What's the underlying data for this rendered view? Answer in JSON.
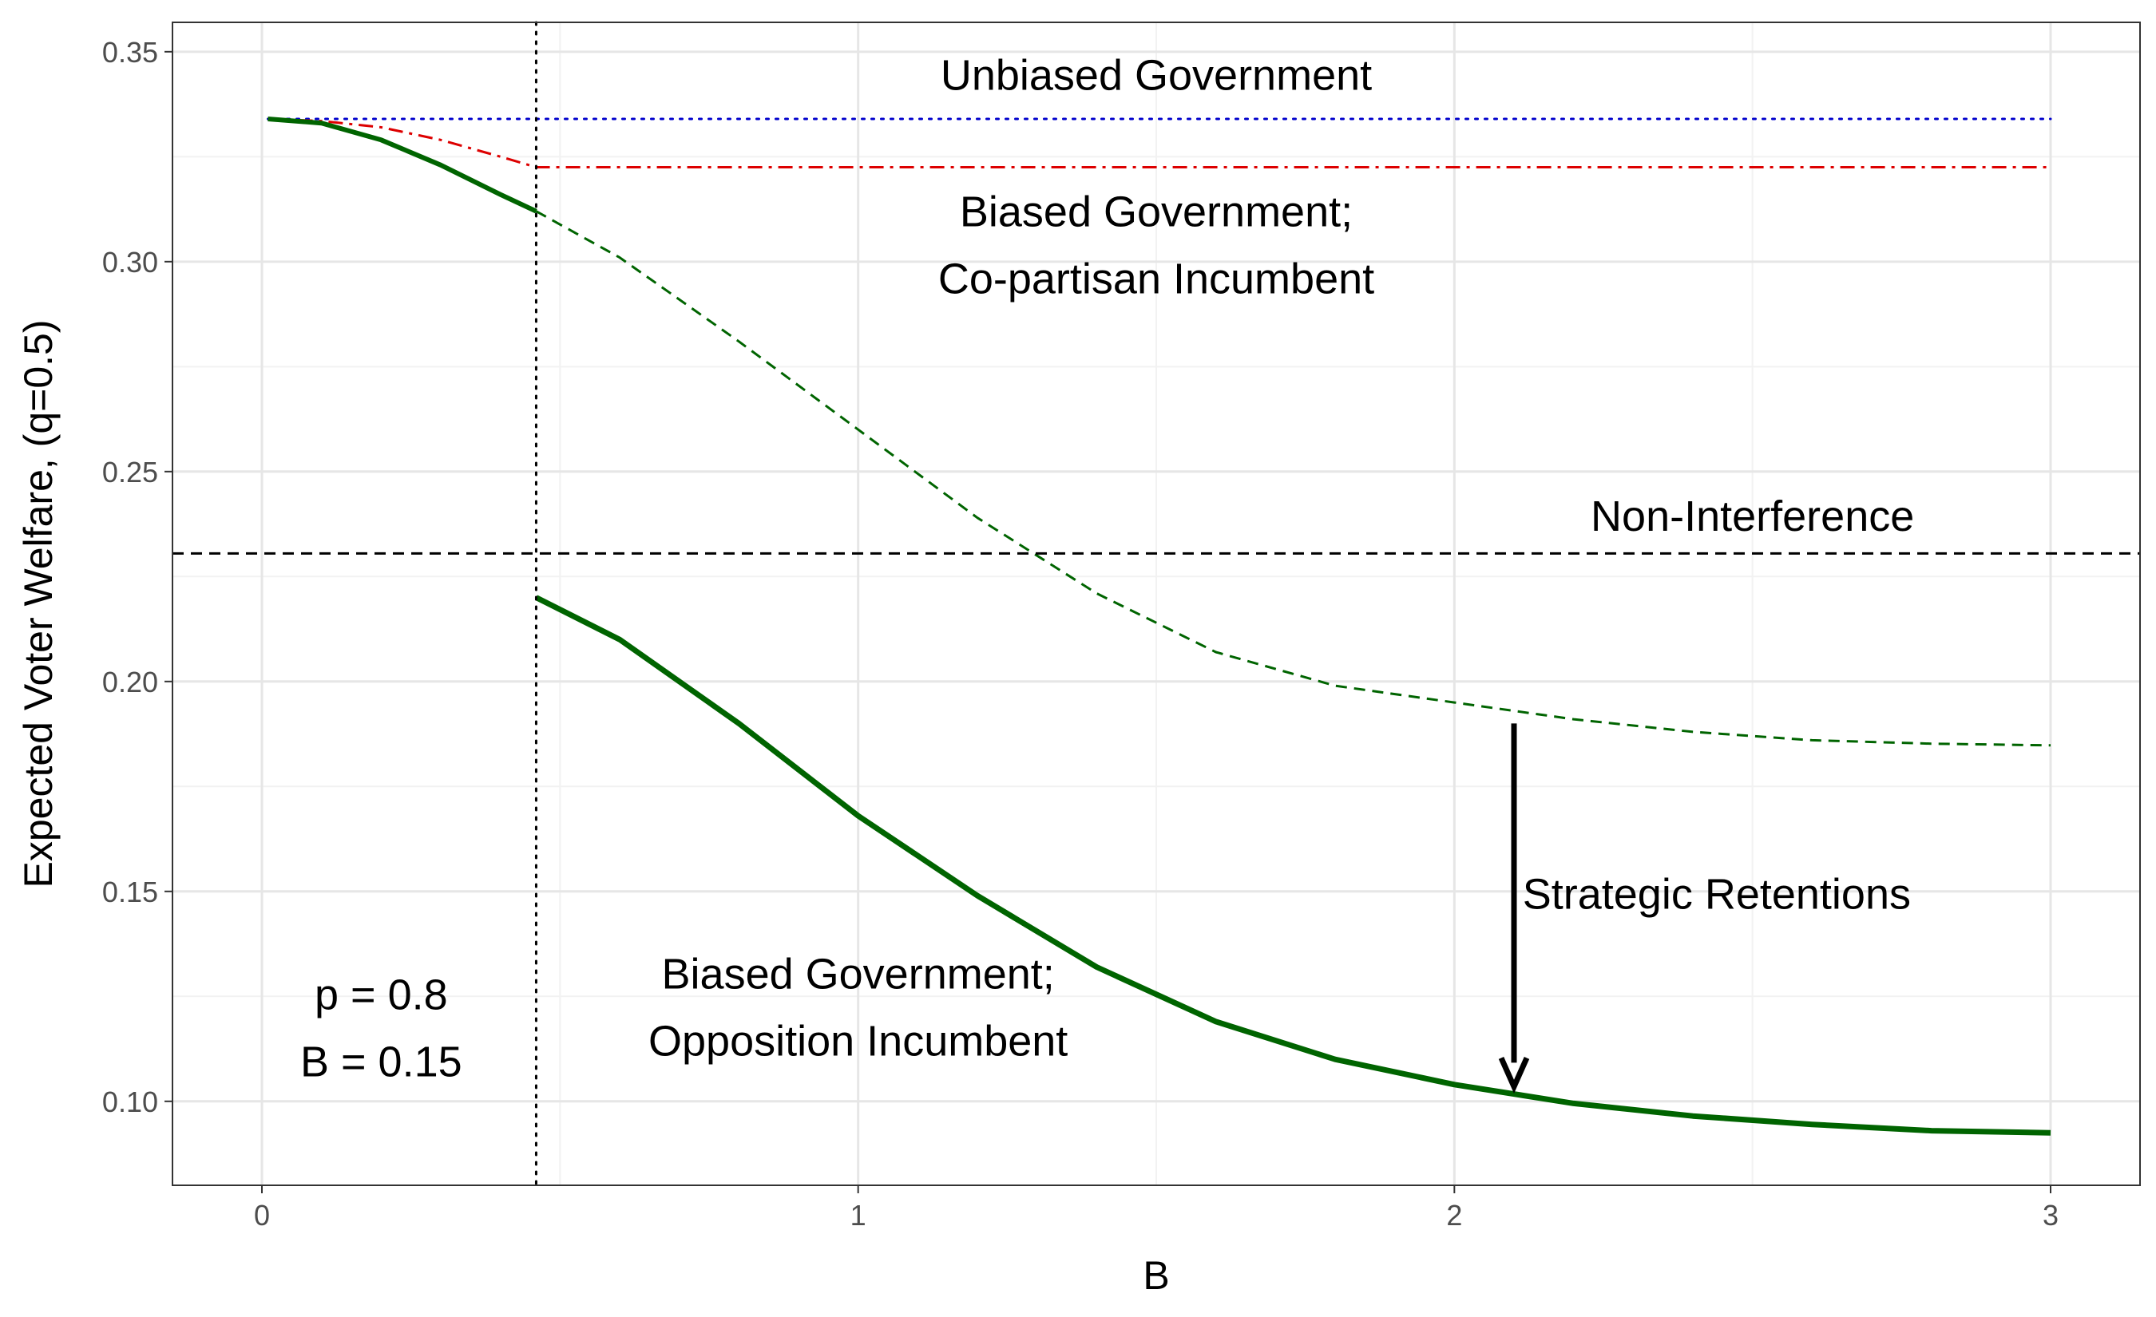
{
  "chart_data": {
    "type": "line",
    "title": "",
    "xlabel": "B",
    "ylabel": "Expected Voter Welfare, (q=0.5)",
    "xlim": [
      -0.15,
      3.15
    ],
    "ylim": [
      0.08,
      0.357
    ],
    "xticks": [
      0,
      1,
      2,
      3
    ],
    "xtick_labels": [
      "0",
      "1",
      "2",
      "3"
    ],
    "yticks": [
      0.1,
      0.15,
      0.2,
      0.25,
      0.3,
      0.35
    ],
    "ytick_labels": [
      "0.10",
      "0.15",
      "0.20",
      "0.25",
      "0.30",
      "0.35"
    ],
    "grid": true,
    "legend": "none",
    "threshold_x": 0.46,
    "series": [
      {
        "color": "#0000cc",
        "style": "dotted",
        "x": [
          0.01,
          3.0
        ],
        "y": [
          0.334,
          0.334
        ]
      },
      {
        "color": "#dd0000",
        "style": "dashdot",
        "x": [
          0.01,
          0.1,
          0.2,
          0.3,
          0.4,
          0.46,
          0.6,
          1.0,
          2.0,
          3.0
        ],
        "y": [
          0.334,
          0.3335,
          0.332,
          0.329,
          0.325,
          0.3225,
          0.3225,
          0.3225,
          0.3225,
          0.3225
        ]
      },
      {
        "color": "#006400",
        "style": "solid",
        "x": [
          0.01,
          0.1,
          0.2,
          0.3,
          0.4,
          0.46
        ],
        "y": [
          0.334,
          0.333,
          0.329,
          0.323,
          0.316,
          0.312
        ]
      },
      {
        "color": "#006400",
        "style": "dashed",
        "x": [
          0.46,
          0.6,
          0.8,
          1.0,
          1.2,
          1.4,
          1.6,
          1.8,
          2.0,
          2.2,
          2.4,
          2.6,
          2.8,
          3.0
        ],
        "y": [
          0.312,
          0.301,
          0.281,
          0.26,
          0.239,
          0.221,
          0.207,
          0.199,
          0.195,
          0.191,
          0.188,
          0.186,
          0.1852,
          0.1848
        ]
      },
      {
        "color": "#006400",
        "style": "solid-thick",
        "x": [
          0.46,
          0.6,
          0.8,
          1.0,
          1.2,
          1.4,
          1.6,
          1.8,
          2.0,
          2.2,
          2.4,
          2.6,
          2.8,
          3.0
        ],
        "y": [
          0.22,
          0.21,
          0.19,
          0.168,
          0.149,
          0.132,
          0.119,
          0.11,
          0.104,
          0.0995,
          0.0965,
          0.0945,
          0.093,
          0.0925
        ]
      },
      {
        "color": "#000000",
        "style": "dashed",
        "x": [
          -0.15,
          3.15
        ],
        "y": [
          0.2305,
          0.2305
        ]
      }
    ],
    "annotations": [
      {
        "lines": [
          "Unbiased Government"
        ],
        "x": 1.5,
        "y": 0.3445
      },
      {
        "lines": [
          "Biased Government;",
          "Co-partisan Incumbent"
        ],
        "x": 1.5,
        "y": 0.312
      },
      {
        "lines": [
          "Non-Interference"
        ],
        "x": 2.5,
        "y": 0.2395
      },
      {
        "lines": [
          "Strategic Retentions"
        ],
        "x": 2.44,
        "y": 0.1495
      },
      {
        "lines": [
          "Biased Government;",
          "Opposition Incumbent"
        ],
        "x": 1.0,
        "y": 0.1305
      },
      {
        "lines": [
          "p = 0.8",
          "B = 0.15"
        ],
        "x": 0.2,
        "y": 0.1255
      }
    ],
    "arrow": {
      "x": 2.1,
      "y_from": 0.19,
      "y_to": 0.1035
    }
  }
}
